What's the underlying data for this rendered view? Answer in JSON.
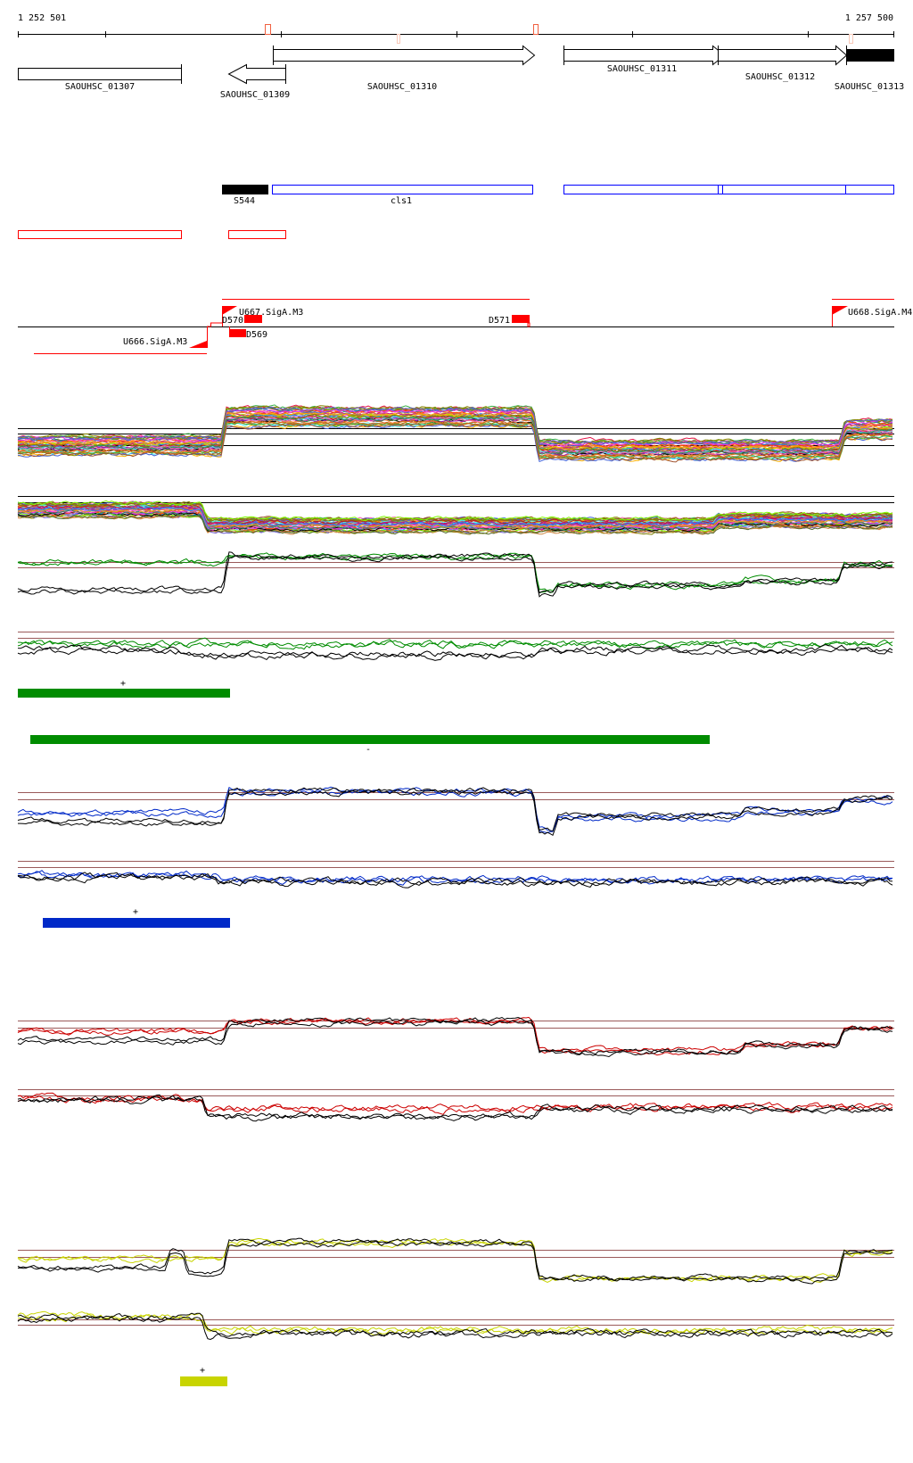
{
  "ruler": {
    "start_label": "1 252 501",
    "end_label": "1 257 500"
  },
  "genes": [
    {
      "name": "SAOUHSC_01307"
    },
    {
      "name": "SAOUHSC_01309"
    },
    {
      "name": "SAOUHSC_01310"
    },
    {
      "name": "SAOUHSC_01311"
    },
    {
      "name": "SAOUHSC_01312"
    },
    {
      "name": "SAOUHSC_01313"
    }
  ],
  "features": {
    "s544": "S544",
    "cls1": "cls1"
  },
  "segments": {
    "u667": "U667.SigA.M3",
    "u666": "U666.SigA.M3",
    "u668": "U668.SigA.M4",
    "d570": "D570",
    "d569": "D569",
    "d571": "D571"
  },
  "strand_marks": {
    "green_plus": "+",
    "green_minus": "-",
    "blue_plus": "+",
    "yellow_plus": "+"
  },
  "colors": {
    "green": "#008c00",
    "blue": "#0029c8",
    "red": "#cc0000",
    "yellow": "#c8d400",
    "threshold": "#9a5a5a",
    "feature_red": "#ff0000",
    "feature_blue": "#0000ff"
  }
}
